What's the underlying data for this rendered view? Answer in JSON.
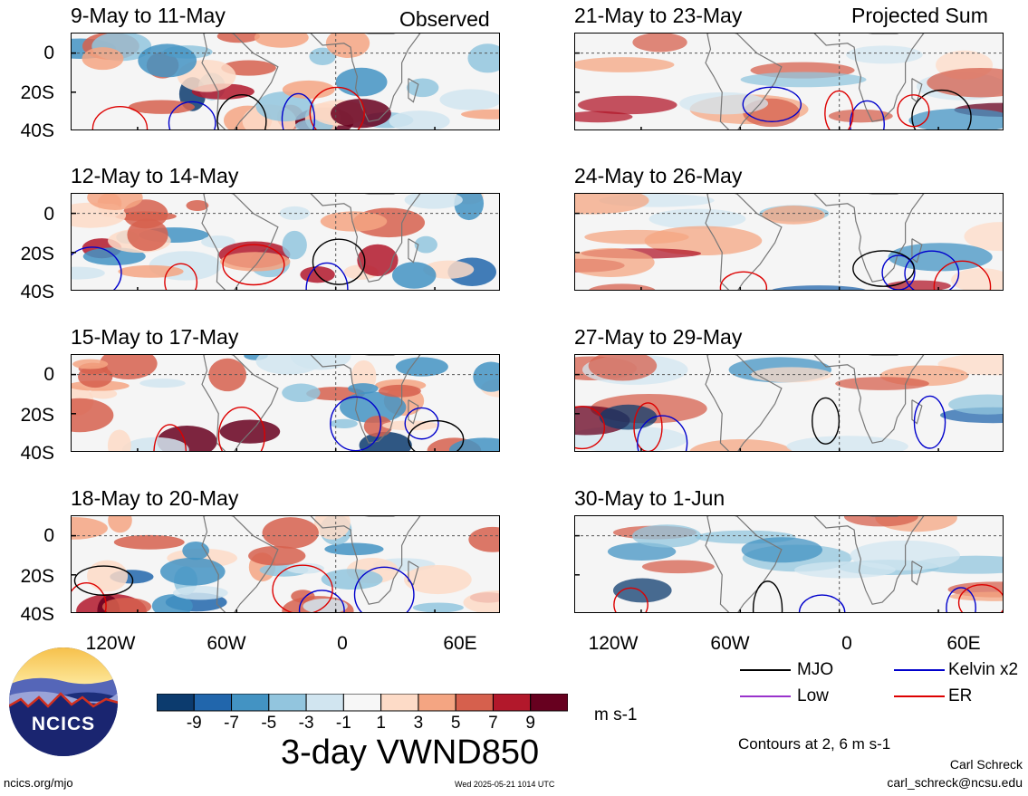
{
  "header": {
    "left_label": "Observed",
    "right_label": "Projected Sum"
  },
  "panels": {
    "observed": [
      {
        "title": "9-May to 11-May"
      },
      {
        "title": "12-May to 14-May"
      },
      {
        "title": "15-May to 17-May"
      },
      {
        "title": "18-May to 20-May"
      }
    ],
    "projected": [
      {
        "title": "21-May to 23-May"
      },
      {
        "title": "24-May to 26-May"
      },
      {
        "title": "27-May to 29-May"
      },
      {
        "title": "30-May to 1-Jun"
      }
    ]
  },
  "axes": {
    "lat_ticks": [
      "0",
      "20S",
      "40S"
    ],
    "lon_ticks": [
      "120W",
      "60W",
      "0",
      "60E"
    ]
  },
  "colorbar": {
    "labels": [
      "-9",
      "-7",
      "-5",
      "-3",
      "-1",
      "1",
      "3",
      "5",
      "7",
      "9"
    ],
    "colors": [
      "#0c3b6e",
      "#2166ac",
      "#4393c3",
      "#92c5de",
      "#d1e5f0",
      "#f7f7f7",
      "#fddbc7",
      "#f4a582",
      "#d6604d",
      "#b2182b",
      "#67001f"
    ],
    "unit": "m s-1"
  },
  "title": "3-day VWND850",
  "legend": {
    "items": [
      {
        "label": "MJO",
        "color": "#000000"
      },
      {
        "label": "Kelvin x2",
        "color": "#0000cc"
      },
      {
        "label": "Low",
        "color": "#9933cc"
      },
      {
        "label": "ER",
        "color": "#dd0000"
      }
    ],
    "note": "Contours at 2, 6 m s-1"
  },
  "logo": {
    "text": "NCICS"
  },
  "footer": {
    "url": "ncics.org/mjo",
    "timestamp": "Wed 2025-05-21 1014 UTC",
    "author": "Carl Schreck",
    "email": "carl_schreck@ncsu.edu"
  }
}
